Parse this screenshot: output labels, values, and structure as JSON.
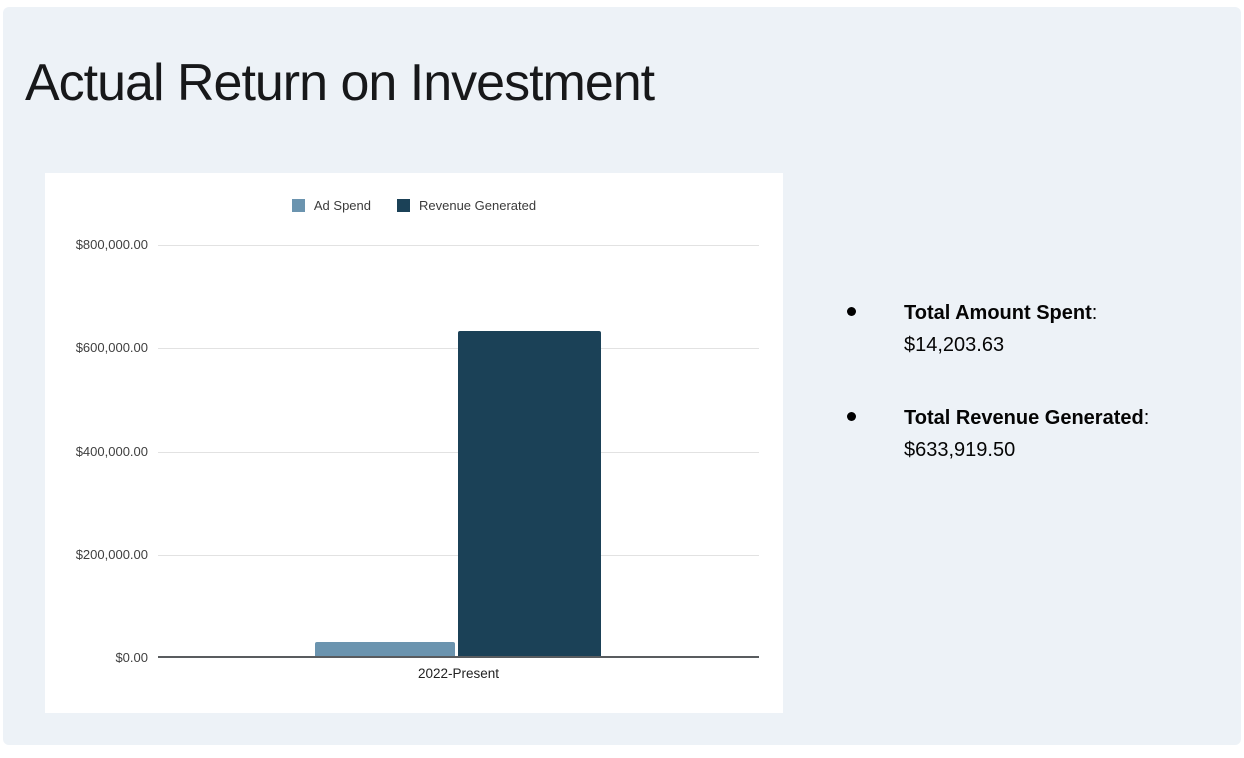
{
  "page": {
    "background_color": "#ffffff",
    "panel_color": "#edf2f7"
  },
  "title": "Actual Return on Investment",
  "chart_data": {
    "type": "bar",
    "title": "",
    "categories": [
      "2022-Present"
    ],
    "series": [
      {
        "name": "Ad Spend",
        "color": "#6b94af",
        "values": [
          14203.63
        ]
      },
      {
        "name": "Revenue Generated",
        "color": "#1b4157",
        "values": [
          633919.5
        ]
      }
    ],
    "xlabel": "",
    "ylabel": "",
    "ylim": [
      0,
      800000
    ],
    "grid": true,
    "legend_position": "top",
    "yticks": [
      {
        "value": 0,
        "label": "$0.00"
      },
      {
        "value": 200000,
        "label": "$200,000.00"
      },
      {
        "value": 400000,
        "label": "$400,000.00"
      },
      {
        "value": 600000,
        "label": "$600,000.00"
      },
      {
        "value": 800000,
        "label": "$800,000.00"
      }
    ]
  },
  "bullets": [
    {
      "label": "Total Amount Spent",
      "separator": ":",
      "value": "$14,203.63"
    },
    {
      "label": "Total Revenue Generated",
      "separator": ":",
      "value": "$633,919.50"
    }
  ]
}
